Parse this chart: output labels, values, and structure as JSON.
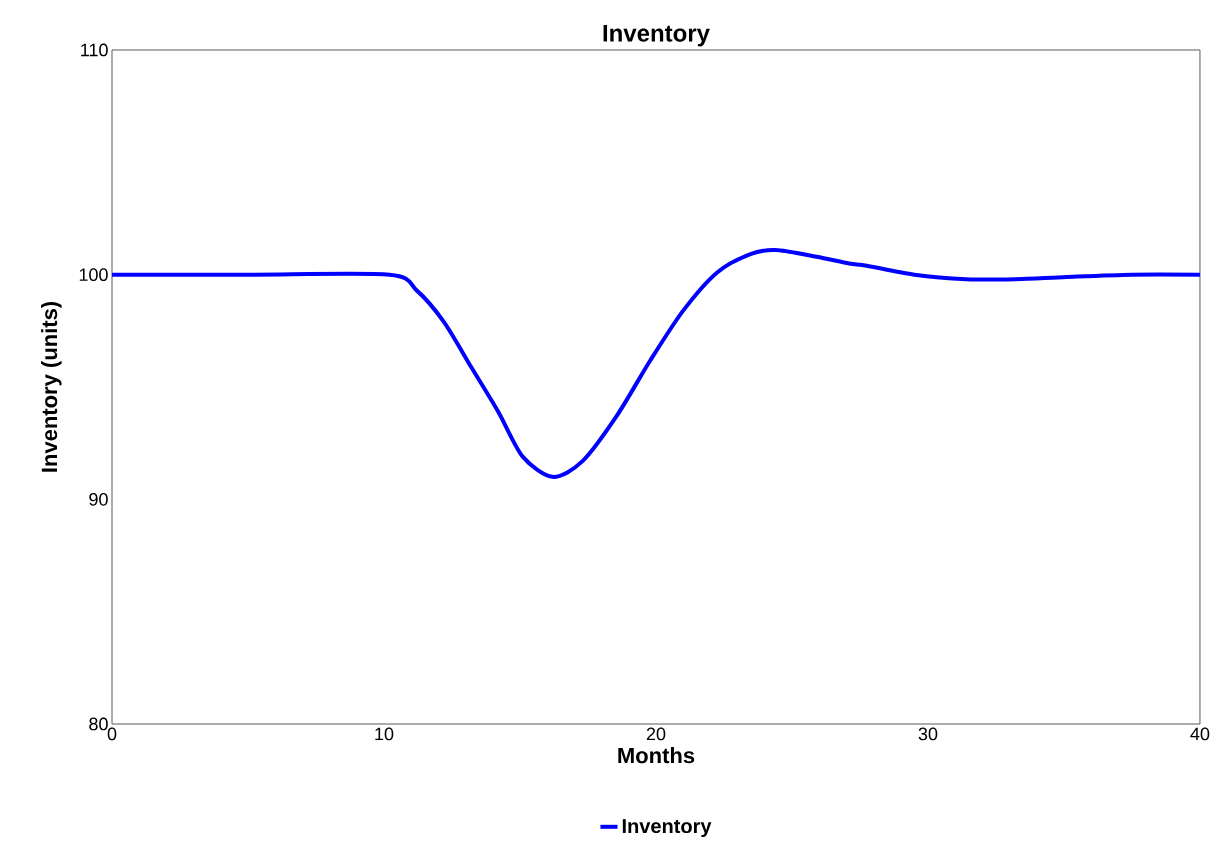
{
  "chart_data": {
    "type": "line",
    "title": "Inventory",
    "xlabel": "Months",
    "ylabel": "Inventory (units)",
    "xlim": [
      0,
      40
    ],
    "ylim": [
      80,
      110
    ],
    "xticks": [
      0,
      10,
      20,
      30,
      40
    ],
    "yticks": [
      80,
      90,
      100,
      110
    ],
    "grid": false,
    "legend": "bottom",
    "marker": "none",
    "line_style": "solid",
    "series": [
      {
        "name": "Inventory",
        "color": "#0000ff",
        "x": [
          0,
          5,
          10.2,
          11.2,
          12.2,
          13.2,
          14.2,
          15.1,
          16.2,
          17.3,
          18.55,
          19.8,
          21.0,
          22.25,
          23.45,
          24.4,
          25.9,
          27.1,
          27.75,
          29.5,
          31.4,
          33.2,
          35.1,
          37.5,
          40
        ],
        "values": [
          100,
          100,
          100,
          99.3,
          97.9,
          95.9,
          93.9,
          91.9,
          91.0,
          91.7,
          93.7,
          96.2,
          98.4,
          100.1,
          100.9,
          101.1,
          100.8,
          100.5,
          100.4,
          100.0,
          99.8,
          99.8,
          99.9,
          100,
          100
        ]
      }
    ]
  }
}
